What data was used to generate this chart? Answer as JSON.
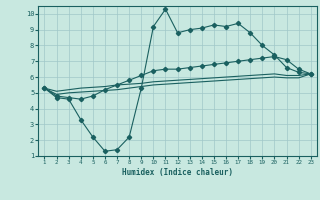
{
  "xlabel": "Humidex (Indice chaleur)",
  "background_color": "#c8e8e0",
  "grid_color": "#a0c8c8",
  "line_color": "#1a6060",
  "xlim": [
    0.5,
    23.5
  ],
  "ylim": [
    1,
    10.5
  ],
  "xticks": [
    1,
    2,
    3,
    4,
    5,
    6,
    7,
    8,
    9,
    10,
    11,
    12,
    13,
    14,
    15,
    16,
    17,
    18,
    19,
    20,
    21,
    22,
    23
  ],
  "yticks": [
    1,
    2,
    3,
    4,
    5,
    6,
    7,
    8,
    9,
    10
  ],
  "x": [
    1,
    2,
    3,
    4,
    5,
    6,
    7,
    8,
    9,
    10,
    11,
    12,
    13,
    14,
    15,
    16,
    17,
    18,
    19,
    20,
    21,
    22,
    23
  ],
  "line1": [
    5.3,
    4.7,
    4.6,
    3.3,
    2.2,
    1.3,
    1.4,
    2.2,
    5.3,
    9.2,
    10.3,
    8.8,
    9.0,
    9.1,
    9.3,
    9.2,
    9.4,
    8.8,
    8.0,
    7.4,
    6.6,
    6.3,
    6.2
  ],
  "line2": [
    5.3,
    4.8,
    4.7,
    4.6,
    4.8,
    5.2,
    5.5,
    5.8,
    6.1,
    6.4,
    6.5,
    6.5,
    6.6,
    6.7,
    6.8,
    6.9,
    7.0,
    7.1,
    7.2,
    7.3,
    7.1,
    6.5,
    6.2
  ],
  "line3": [
    5.3,
    5.1,
    5.2,
    5.3,
    5.35,
    5.4,
    5.5,
    5.55,
    5.6,
    5.7,
    5.75,
    5.8,
    5.85,
    5.9,
    5.95,
    6.0,
    6.05,
    6.1,
    6.15,
    6.2,
    6.1,
    6.1,
    6.2
  ],
  "line4": [
    5.3,
    4.9,
    5.0,
    5.05,
    5.1,
    5.15,
    5.2,
    5.3,
    5.4,
    5.5,
    5.55,
    5.6,
    5.65,
    5.7,
    5.75,
    5.8,
    5.85,
    5.9,
    5.95,
    6.0,
    5.95,
    5.95,
    6.2
  ]
}
